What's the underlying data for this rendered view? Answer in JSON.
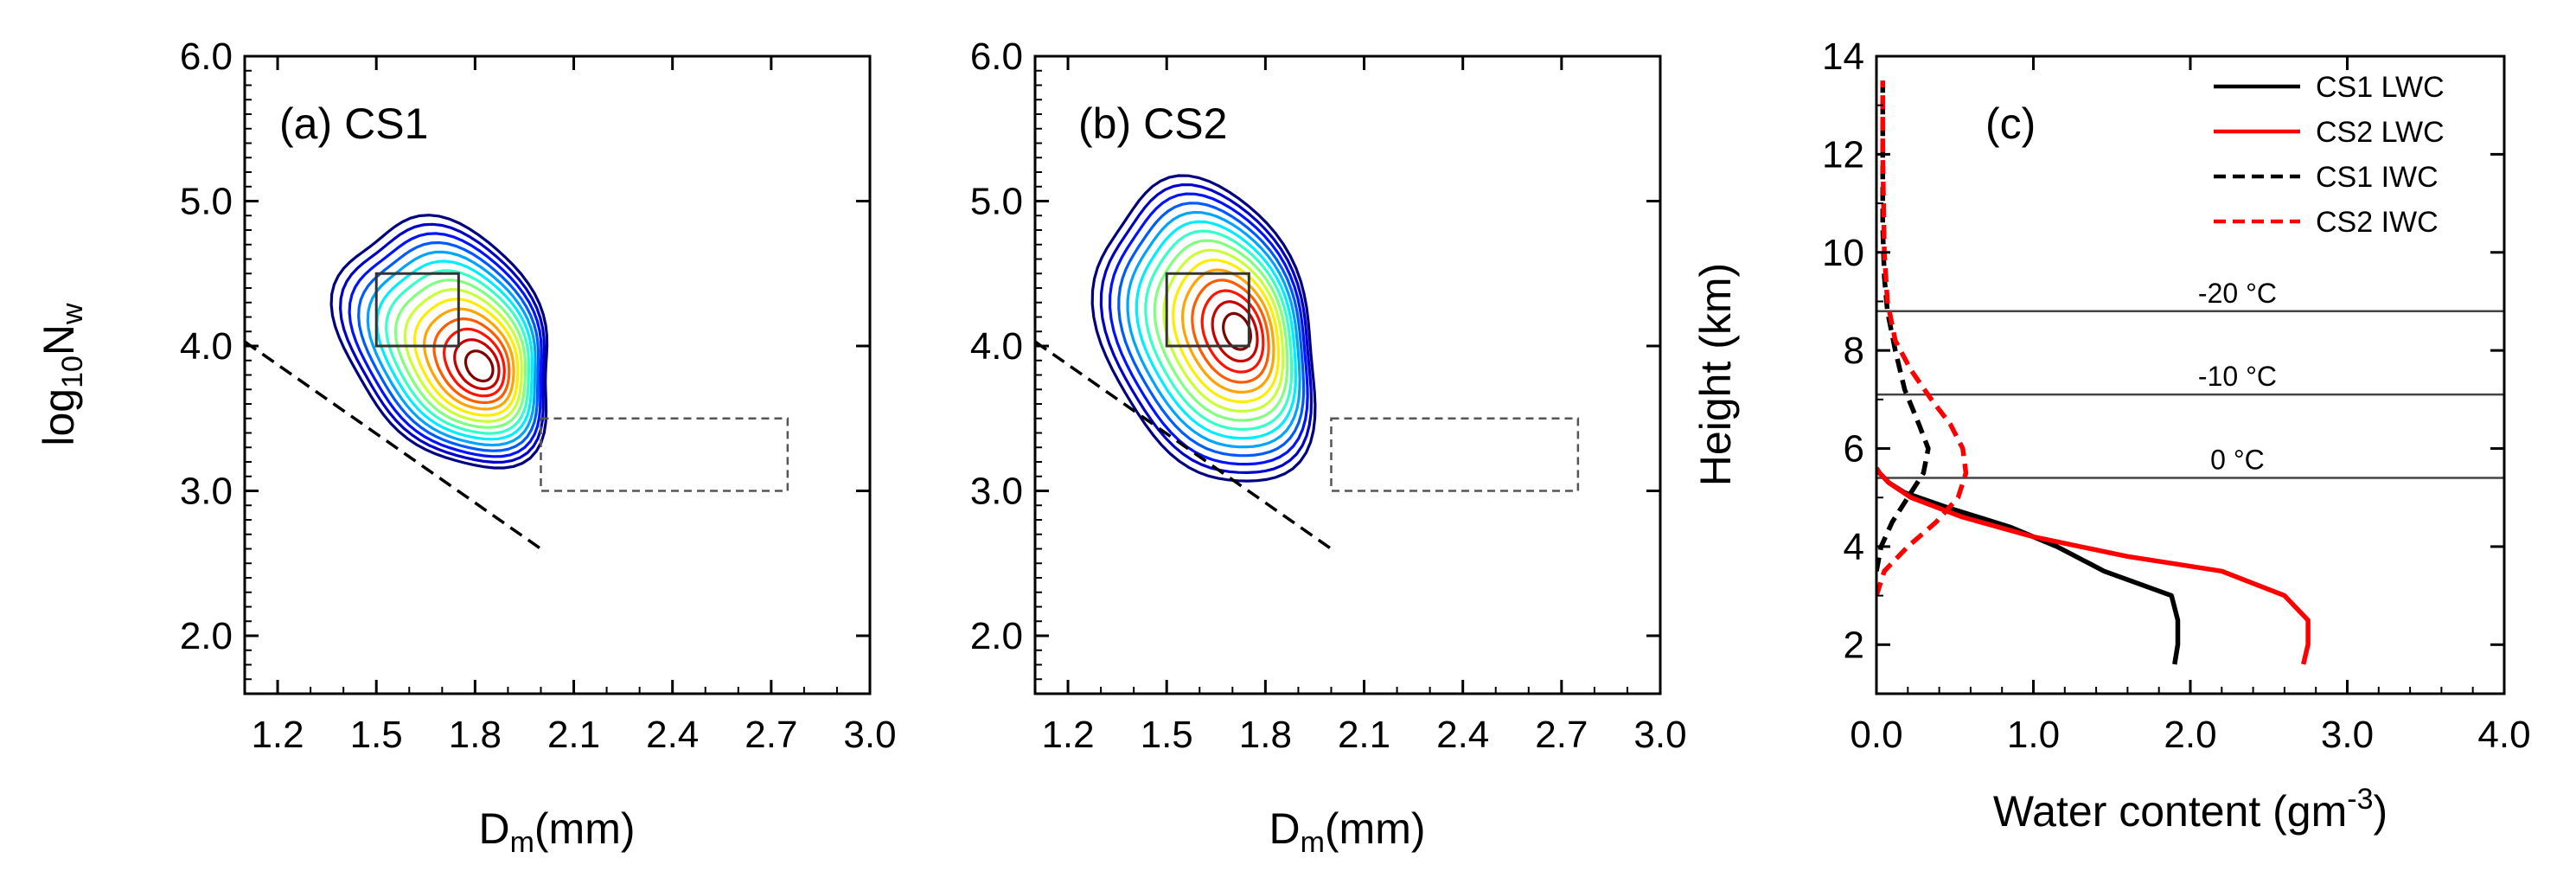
{
  "chart_data": [
    {
      "type": "contour",
      "panel_label": "(a)",
      "title": "CS1",
      "xlabel": {
        "base": "D",
        "sub": "m",
        "rest": "(mm)"
      },
      "ylabel": {
        "prefix": "log",
        "sub1": "10",
        "mid": "N",
        "sub2": "w"
      },
      "xlim": [
        1.1,
        3.0
      ],
      "ylim": [
        1.6,
        6.0
      ],
      "xticks": [
        "1.2",
        "1.5",
        "1.8",
        "2.1",
        "2.4",
        "2.7",
        "3.0"
      ],
      "yticks": [
        "2.0",
        "3.0",
        "4.0",
        "5.0",
        "6.0"
      ],
      "peak": [
        1.82,
        3.85
      ],
      "contour_levels": 15,
      "solid_box": [
        1.5,
        4.0,
        1.75,
        4.5
      ],
      "dashed_box": [
        2.0,
        3.0,
        2.75,
        3.5
      ],
      "dashed_line": [
        [
          1.1,
          4.03
        ],
        [
          2.0,
          2.6
        ]
      ]
    },
    {
      "type": "contour",
      "panel_label": "(b)",
      "title": "CS2",
      "xlabel": {
        "base": "D",
        "sub": "m",
        "rest": "(mm)"
      },
      "ylabel": null,
      "xlim": [
        1.1,
        3.0
      ],
      "ylim": [
        1.6,
        6.0
      ],
      "xticks": [
        "1.2",
        "1.5",
        "1.8",
        "2.1",
        "2.4",
        "2.7",
        "3.0"
      ],
      "yticks": [
        "2.0",
        "3.0",
        "4.0",
        "5.0",
        "6.0"
      ],
      "peak": [
        1.72,
        4.1
      ],
      "contour_levels": 15,
      "solid_box": [
        1.5,
        4.0,
        1.75,
        4.5
      ],
      "dashed_box": [
        2.0,
        3.0,
        2.75,
        3.5
      ],
      "dashed_line": [
        [
          1.1,
          4.03
        ],
        [
          2.0,
          2.6
        ]
      ]
    },
    {
      "type": "line",
      "panel_label": "(c)",
      "xlabel": {
        "main": "Water content (gm",
        "sup": "-3",
        "end": ")"
      },
      "ylabel": "Height (km)",
      "xlim": [
        0,
        4.0
      ],
      "ylim": [
        1,
        14
      ],
      "xticks": [
        "0.0",
        "1.0",
        "2.0",
        "3.0",
        "4.0"
      ],
      "yticks": [
        "2",
        "4",
        "6",
        "8",
        "10",
        "12",
        "14"
      ],
      "isotherms": [
        {
          "height": 8.8,
          "label": "-20 °C"
        },
        {
          "height": 7.1,
          "label": "-10 °C"
        },
        {
          "height": 5.4,
          "label": "0 °C"
        }
      ],
      "series": [
        {
          "name": "CS1 LWC",
          "color": "#000000",
          "dash": "solid",
          "x": [
            1.9,
            1.92,
            1.92,
            1.88,
            1.45,
            1.15,
            0.85,
            0.45,
            0.18,
            0.08,
            0.02,
            0.0
          ],
          "y": [
            1.6,
            2.0,
            2.5,
            3.0,
            3.5,
            4.0,
            4.4,
            4.8,
            5.1,
            5.3,
            5.5,
            5.6
          ]
        },
        {
          "name": "CS2 LWC",
          "color": "#ff0000",
          "dash": "solid",
          "x": [
            2.72,
            2.75,
            2.75,
            2.6,
            2.2,
            1.6,
            1.0,
            0.55,
            0.22,
            0.08,
            0.02,
            0.0
          ],
          "y": [
            1.6,
            2.0,
            2.5,
            3.0,
            3.5,
            3.8,
            4.2,
            4.6,
            5.0,
            5.3,
            5.5,
            5.6
          ]
        },
        {
          "name": "CS1 IWC",
          "color": "#000000",
          "dash": "dashed",
          "x": [
            0.0,
            0.03,
            0.1,
            0.2,
            0.3,
            0.33,
            0.27,
            0.18,
            0.12,
            0.07,
            0.05,
            0.04,
            0.04,
            0.04
          ],
          "y": [
            3.5,
            4.0,
            4.5,
            5.0,
            5.5,
            6.0,
            6.5,
            7.2,
            8.0,
            8.8,
            9.5,
            10.5,
            12.0,
            13.5
          ]
        },
        {
          "name": "CS2 IWC",
          "color": "#ff0000",
          "dash": "dashed",
          "x": [
            0.0,
            0.05,
            0.2,
            0.38,
            0.52,
            0.57,
            0.55,
            0.47,
            0.35,
            0.22,
            0.12,
            0.07,
            0.05,
            0.04,
            0.04
          ],
          "y": [
            3.0,
            3.5,
            4.0,
            4.5,
            5.0,
            5.5,
            6.0,
            6.5,
            7.0,
            7.6,
            8.2,
            9.0,
            10.0,
            12.0,
            13.5
          ]
        }
      ]
    }
  ]
}
